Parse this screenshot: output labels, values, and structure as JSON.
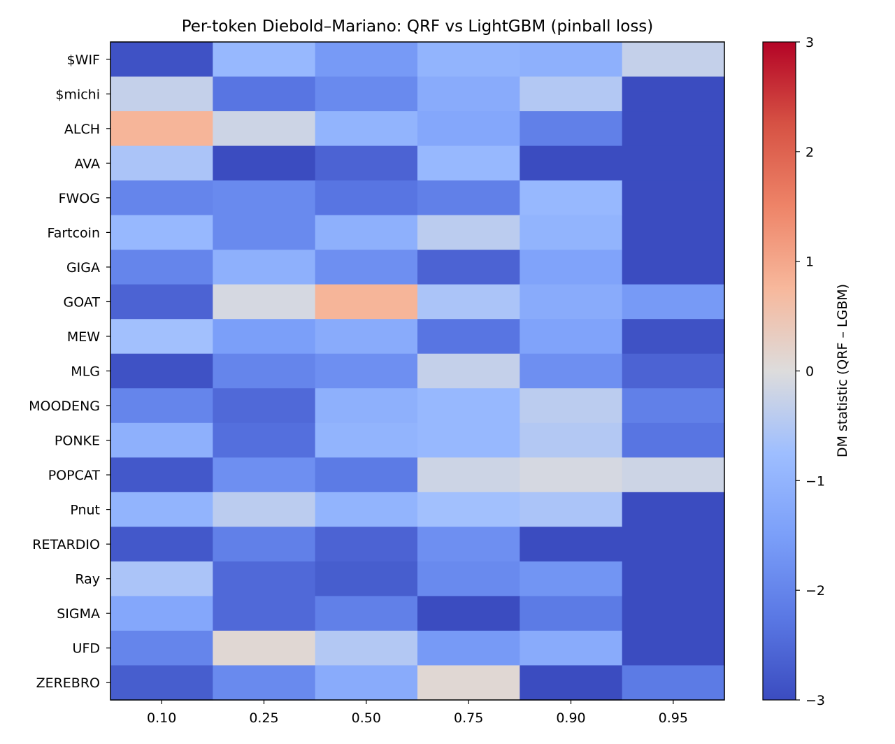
{
  "chart_data": {
    "type": "heatmap",
    "title": "Per-token Diebold–Mariano: QRF vs LightGBM (pinball loss)",
    "x_categories": [
      "0.10",
      "0.25",
      "0.50",
      "0.75",
      "0.90",
      "0.95"
    ],
    "y_categories": [
      "$WIF",
      "$michi",
      "ALCH",
      "AVA",
      "FWOG",
      "Fartcoin",
      "GIGA",
      "GOAT",
      "MEW",
      "MLG",
      "MOODENG",
      "PONKE",
      "POPCAT",
      "Pnut",
      "RETARDIO",
      "Ray",
      "SIGMA",
      "UFD",
      "ZEREBRO"
    ],
    "values": [
      [
        -2.9,
        -0.9,
        -1.6,
        -1.0,
        -1.1,
        -0.3
      ],
      [
        -0.3,
        -2.3,
        -1.9,
        -1.2,
        -0.5,
        -3.0
      ],
      [
        0.8,
        -0.2,
        -1.0,
        -1.3,
        -2.1,
        -3.0
      ],
      [
        -0.6,
        -3.0,
        -2.6,
        -0.9,
        -3.0,
        -3.0
      ],
      [
        -2.0,
        -1.9,
        -2.3,
        -2.1,
        -0.9,
        -3.0
      ],
      [
        -0.9,
        -1.9,
        -1.1,
        -0.4,
        -1.0,
        -3.0
      ],
      [
        -2.0,
        -1.1,
        -1.8,
        -2.6,
        -1.4,
        -3.0
      ],
      [
        -2.6,
        -0.1,
        0.8,
        -0.6,
        -1.2,
        -1.6
      ],
      [
        -0.7,
        -1.5,
        -1.2,
        -2.3,
        -1.4,
        -2.9
      ],
      [
        -2.9,
        -2.0,
        -1.8,
        -0.3,
        -1.8,
        -2.6
      ],
      [
        -2.0,
        -2.5,
        -1.1,
        -0.9,
        -0.4,
        -2.1
      ],
      [
        -1.1,
        -2.4,
        -1.0,
        -0.9,
        -0.5,
        -2.3
      ],
      [
        -2.8,
        -1.8,
        -2.2,
        -0.2,
        -0.1,
        -0.2
      ],
      [
        -1.0,
        -0.4,
        -1.0,
        -0.7,
        -0.6,
        -3.0
      ],
      [
        -2.8,
        -2.1,
        -2.6,
        -1.8,
        -3.0,
        -3.0
      ],
      [
        -0.6,
        -2.5,
        -2.7,
        -1.9,
        -1.7,
        -3.0
      ],
      [
        -1.3,
        -2.5,
        -2.1,
        -3.0,
        -2.2,
        -3.0
      ],
      [
        -2.0,
        0.1,
        -0.5,
        -1.6,
        -1.2,
        -3.0
      ],
      [
        -2.7,
        -1.9,
        -1.2,
        0.1,
        -3.0,
        -2.2
      ]
    ],
    "colorbar": {
      "label": "DM statistic (QRF – LGBM)",
      "vmin": -3,
      "vmax": 3,
      "ticks": [
        "−3",
        "−2",
        "−1",
        "0",
        "1",
        "2",
        "3"
      ],
      "colormap": "coolwarm"
    }
  }
}
